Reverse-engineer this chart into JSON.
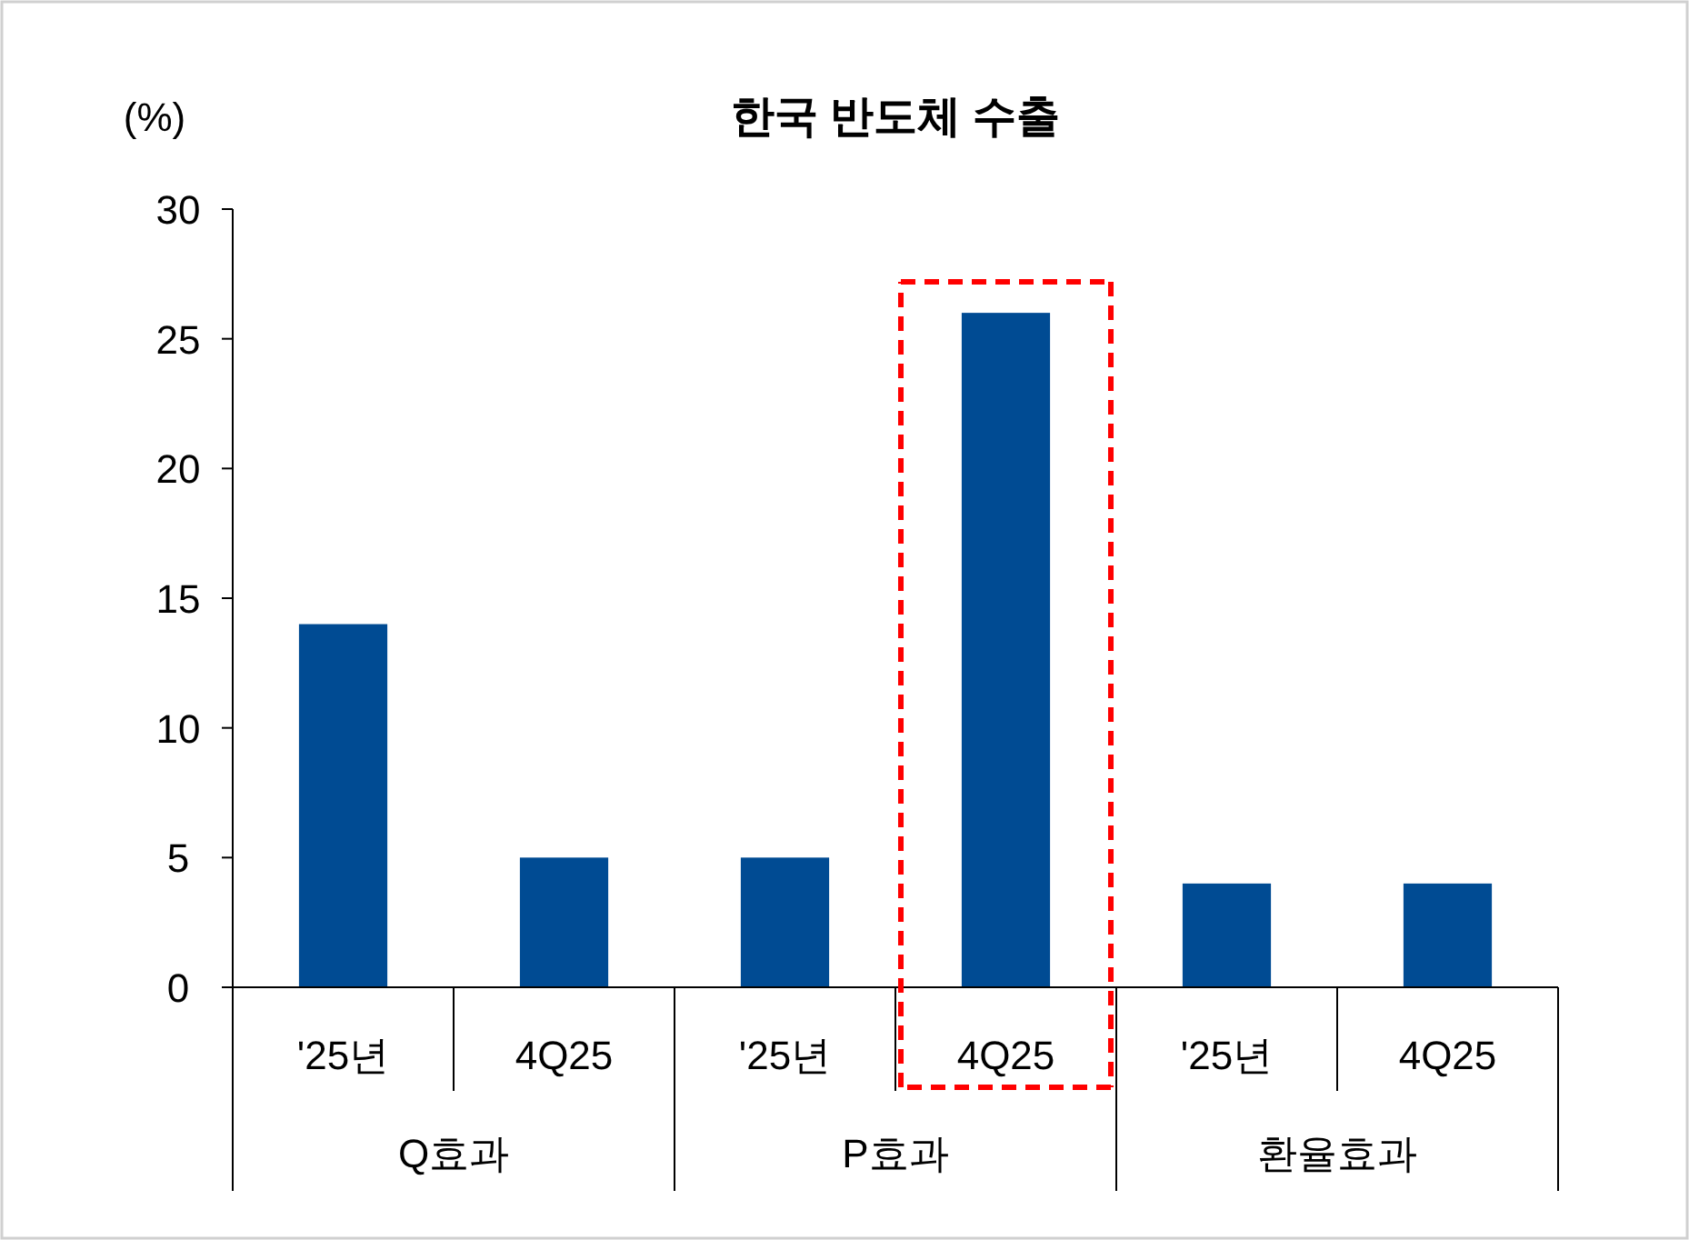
{
  "chart_data": {
    "type": "bar",
    "title": "한국 반도체 수출",
    "ylabel": "(%)",
    "categories": [
      "'25년",
      "4Q25",
      "'25년",
      "4Q25",
      "'25년",
      "4Q25"
    ],
    "values": [
      14,
      5,
      5,
      26,
      4,
      4
    ],
    "color": "#004b93",
    "ylim": [
      0,
      30
    ],
    "yticks": [
      0,
      5,
      10,
      15,
      20,
      25,
      30
    ],
    "grid": false,
    "annotations": [
      "Q효과",
      "P효과",
      "환율효과"
    ]
  }
}
